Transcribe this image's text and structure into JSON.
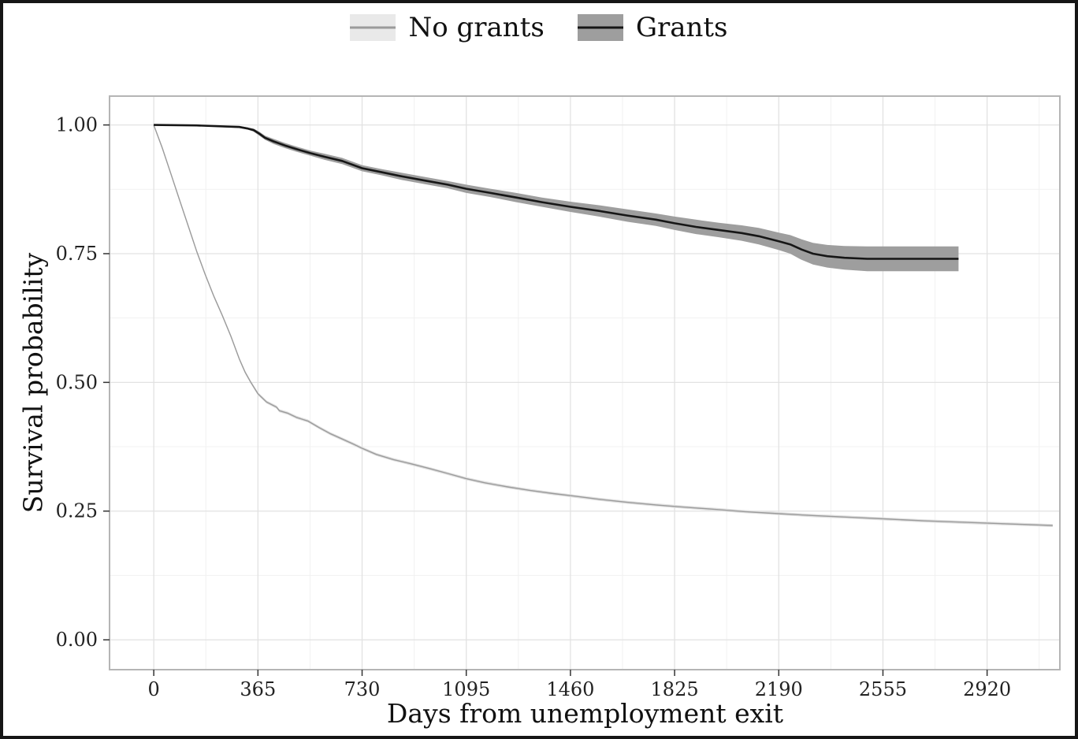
{
  "chart_data": {
    "type": "line",
    "title": "",
    "xlabel": "Days from unemployment exit",
    "ylabel": "Survival probability",
    "xlim": [
      -155,
      3175
    ],
    "ylim": [
      -0.058,
      1.056
    ],
    "x_ticks": [
      0,
      365,
      730,
      1095,
      1460,
      1825,
      2190,
      2555,
      2920
    ],
    "y_ticks": [
      0.0,
      0.25,
      0.5,
      0.75,
      1.0
    ],
    "grid": true,
    "legend_position": "top",
    "grid_major_color": "#e2e2e2",
    "grid_minor_color": "#f1f1f1",
    "panel_border_color": "#b5b5b5",
    "tick_color": "#333333",
    "tick_label_color": "#222222",
    "series": [
      {
        "name": "No grants",
        "color": "#9b9b9b",
        "line_width": 1.4,
        "band_color": "#e0e0e0",
        "band_opacity": 1,
        "band_halfwidth": 0.003,
        "x": [
          0,
          30,
          60,
          90,
          120,
          150,
          180,
          210,
          240,
          270,
          300,
          320,
          340,
          365,
          395,
          430,
          440,
          470,
          500,
          540,
          580,
          620,
          660,
          700,
          730,
          780,
          840,
          900,
          970,
          1030,
          1095,
          1160,
          1240,
          1320,
          1400,
          1460,
          1560,
          1660,
          1760,
          1825,
          1950,
          2070,
          2190,
          2320,
          2440,
          2555,
          2700,
          2850,
          3000,
          3150
        ],
        "y": [
          1.0,
          0.955,
          0.905,
          0.855,
          0.805,
          0.755,
          0.71,
          0.668,
          0.63,
          0.59,
          0.545,
          0.52,
          0.5,
          0.478,
          0.462,
          0.452,
          0.445,
          0.44,
          0.432,
          0.425,
          0.412,
          0.4,
          0.39,
          0.38,
          0.372,
          0.36,
          0.35,
          0.342,
          0.332,
          0.323,
          0.313,
          0.305,
          0.297,
          0.29,
          0.284,
          0.28,
          0.273,
          0.267,
          0.262,
          0.259,
          0.254,
          0.249,
          0.245,
          0.241,
          0.238,
          0.235,
          0.231,
          0.228,
          0.225,
          0.222
        ]
      },
      {
        "name": "Grants",
        "color": "#161616",
        "line_width": 2.6,
        "band_color": "#9e9e9e",
        "band_opacity": 1,
        "band_halfwidth": [
          0.001,
          0.001,
          0.002,
          0.002,
          0.003,
          0.004,
          0.004,
          0.005,
          0.005,
          0.005,
          0.005,
          0.006,
          0.006,
          0.006,
          0.006,
          0.007,
          0.007,
          0.007,
          0.008,
          0.008,
          0.009,
          0.009,
          0.01,
          0.011,
          0.012,
          0.012,
          0.013,
          0.014,
          0.014,
          0.015,
          0.016,
          0.017,
          0.018,
          0.02,
          0.021,
          0.022,
          0.023,
          0.024,
          0.024
        ],
        "x": [
          0,
          150,
          300,
          330,
          350,
          370,
          390,
          420,
          460,
          500,
          550,
          600,
          660,
          730,
          800,
          870,
          950,
          1030,
          1095,
          1180,
          1270,
          1360,
          1460,
          1560,
          1660,
          1760,
          1825,
          1900,
          1980,
          2060,
          2120,
          2190,
          2230,
          2270,
          2310,
          2360,
          2420,
          2500,
          2820
        ],
        "y": [
          1.0,
          0.999,
          0.996,
          0.993,
          0.99,
          0.983,
          0.975,
          0.968,
          0.96,
          0.953,
          0.945,
          0.938,
          0.93,
          0.916,
          0.908,
          0.9,
          0.892,
          0.884,
          0.876,
          0.868,
          0.859,
          0.85,
          0.841,
          0.833,
          0.824,
          0.816,
          0.809,
          0.802,
          0.796,
          0.79,
          0.784,
          0.774,
          0.768,
          0.758,
          0.75,
          0.745,
          0.742,
          0.74,
          0.74
        ]
      }
    ]
  }
}
